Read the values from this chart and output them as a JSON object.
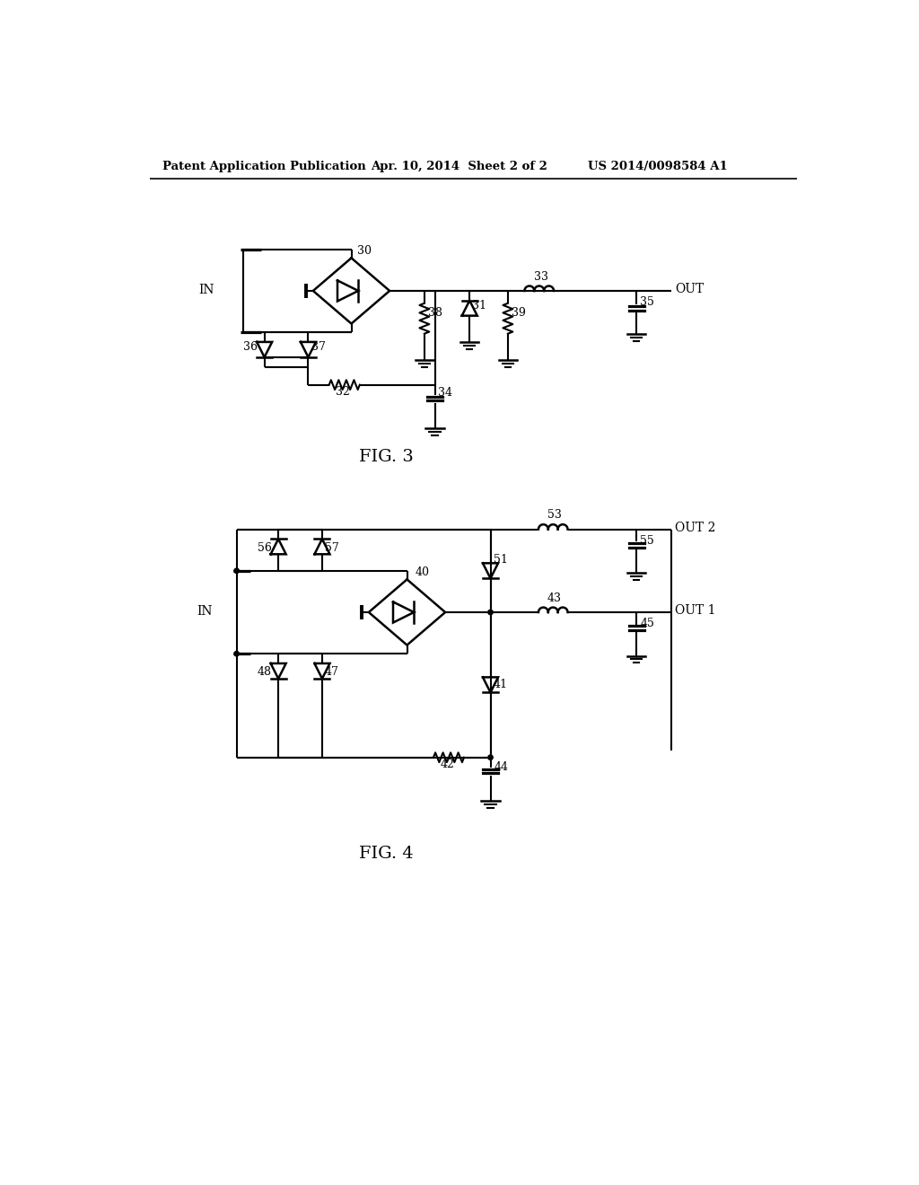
{
  "background_color": "#ffffff",
  "header_left": "Patent Application Publication",
  "header_center": "Apr. 10, 2014  Sheet 2 of 2",
  "header_right": "US 2014/0098584 A1",
  "fig3_label": "FIG. 3",
  "fig4_label": "FIG. 4",
  "line_color": "#000000",
  "line_width": 1.5
}
